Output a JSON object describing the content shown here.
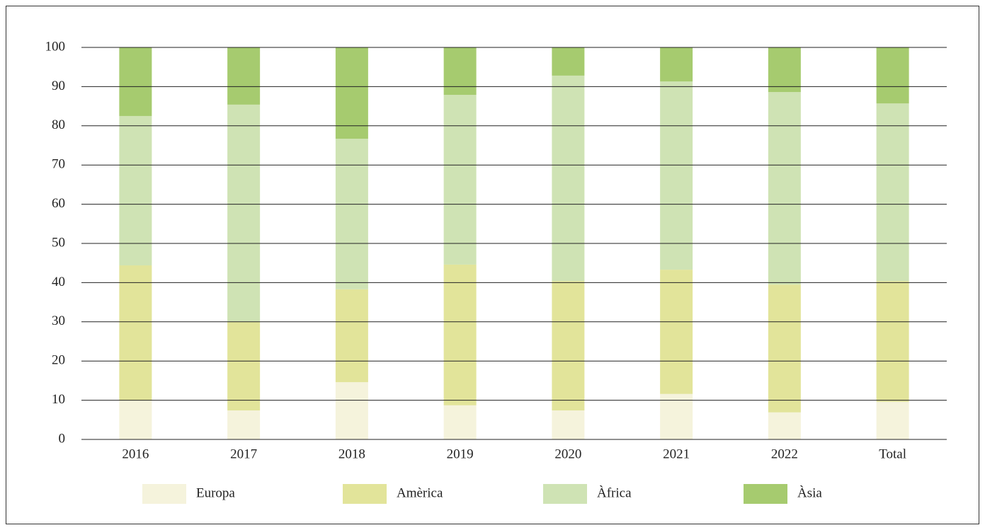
{
  "chart_data": {
    "type": "bar",
    "stacked": true,
    "categories": [
      "2016",
      "2017",
      "2018",
      "2019",
      "2020",
      "2021",
      "2022",
      "Total"
    ],
    "series": [
      {
        "name": "Europa",
        "color": "#f5f3dc",
        "values": [
          9.9,
          7.4,
          14.6,
          8.7,
          7.4,
          11.6,
          6.9,
          9.6
        ]
      },
      {
        "name": "Amèrica",
        "color": "#e2e49a",
        "values": [
          34.5,
          22.7,
          23.7,
          35.9,
          33.0,
          31.7,
          32.6,
          30.8
        ]
      },
      {
        "name": "Àfrica",
        "color": "#cfe3b4",
        "values": [
          38.1,
          55.3,
          38.4,
          43.3,
          52.4,
          48.0,
          49.1,
          45.3
        ]
      },
      {
        "name": "Àsia",
        "color": "#a6cb6f",
        "values": [
          17.5,
          14.6,
          23.3,
          12.1,
          7.2,
          8.7,
          11.4,
          14.3
        ]
      }
    ],
    "ylim": [
      0,
      100
    ],
    "yticks": [
      0,
      10,
      20,
      30,
      40,
      50,
      60,
      70,
      80,
      90,
      100
    ],
    "grid": true,
    "legend": "bottom"
  }
}
